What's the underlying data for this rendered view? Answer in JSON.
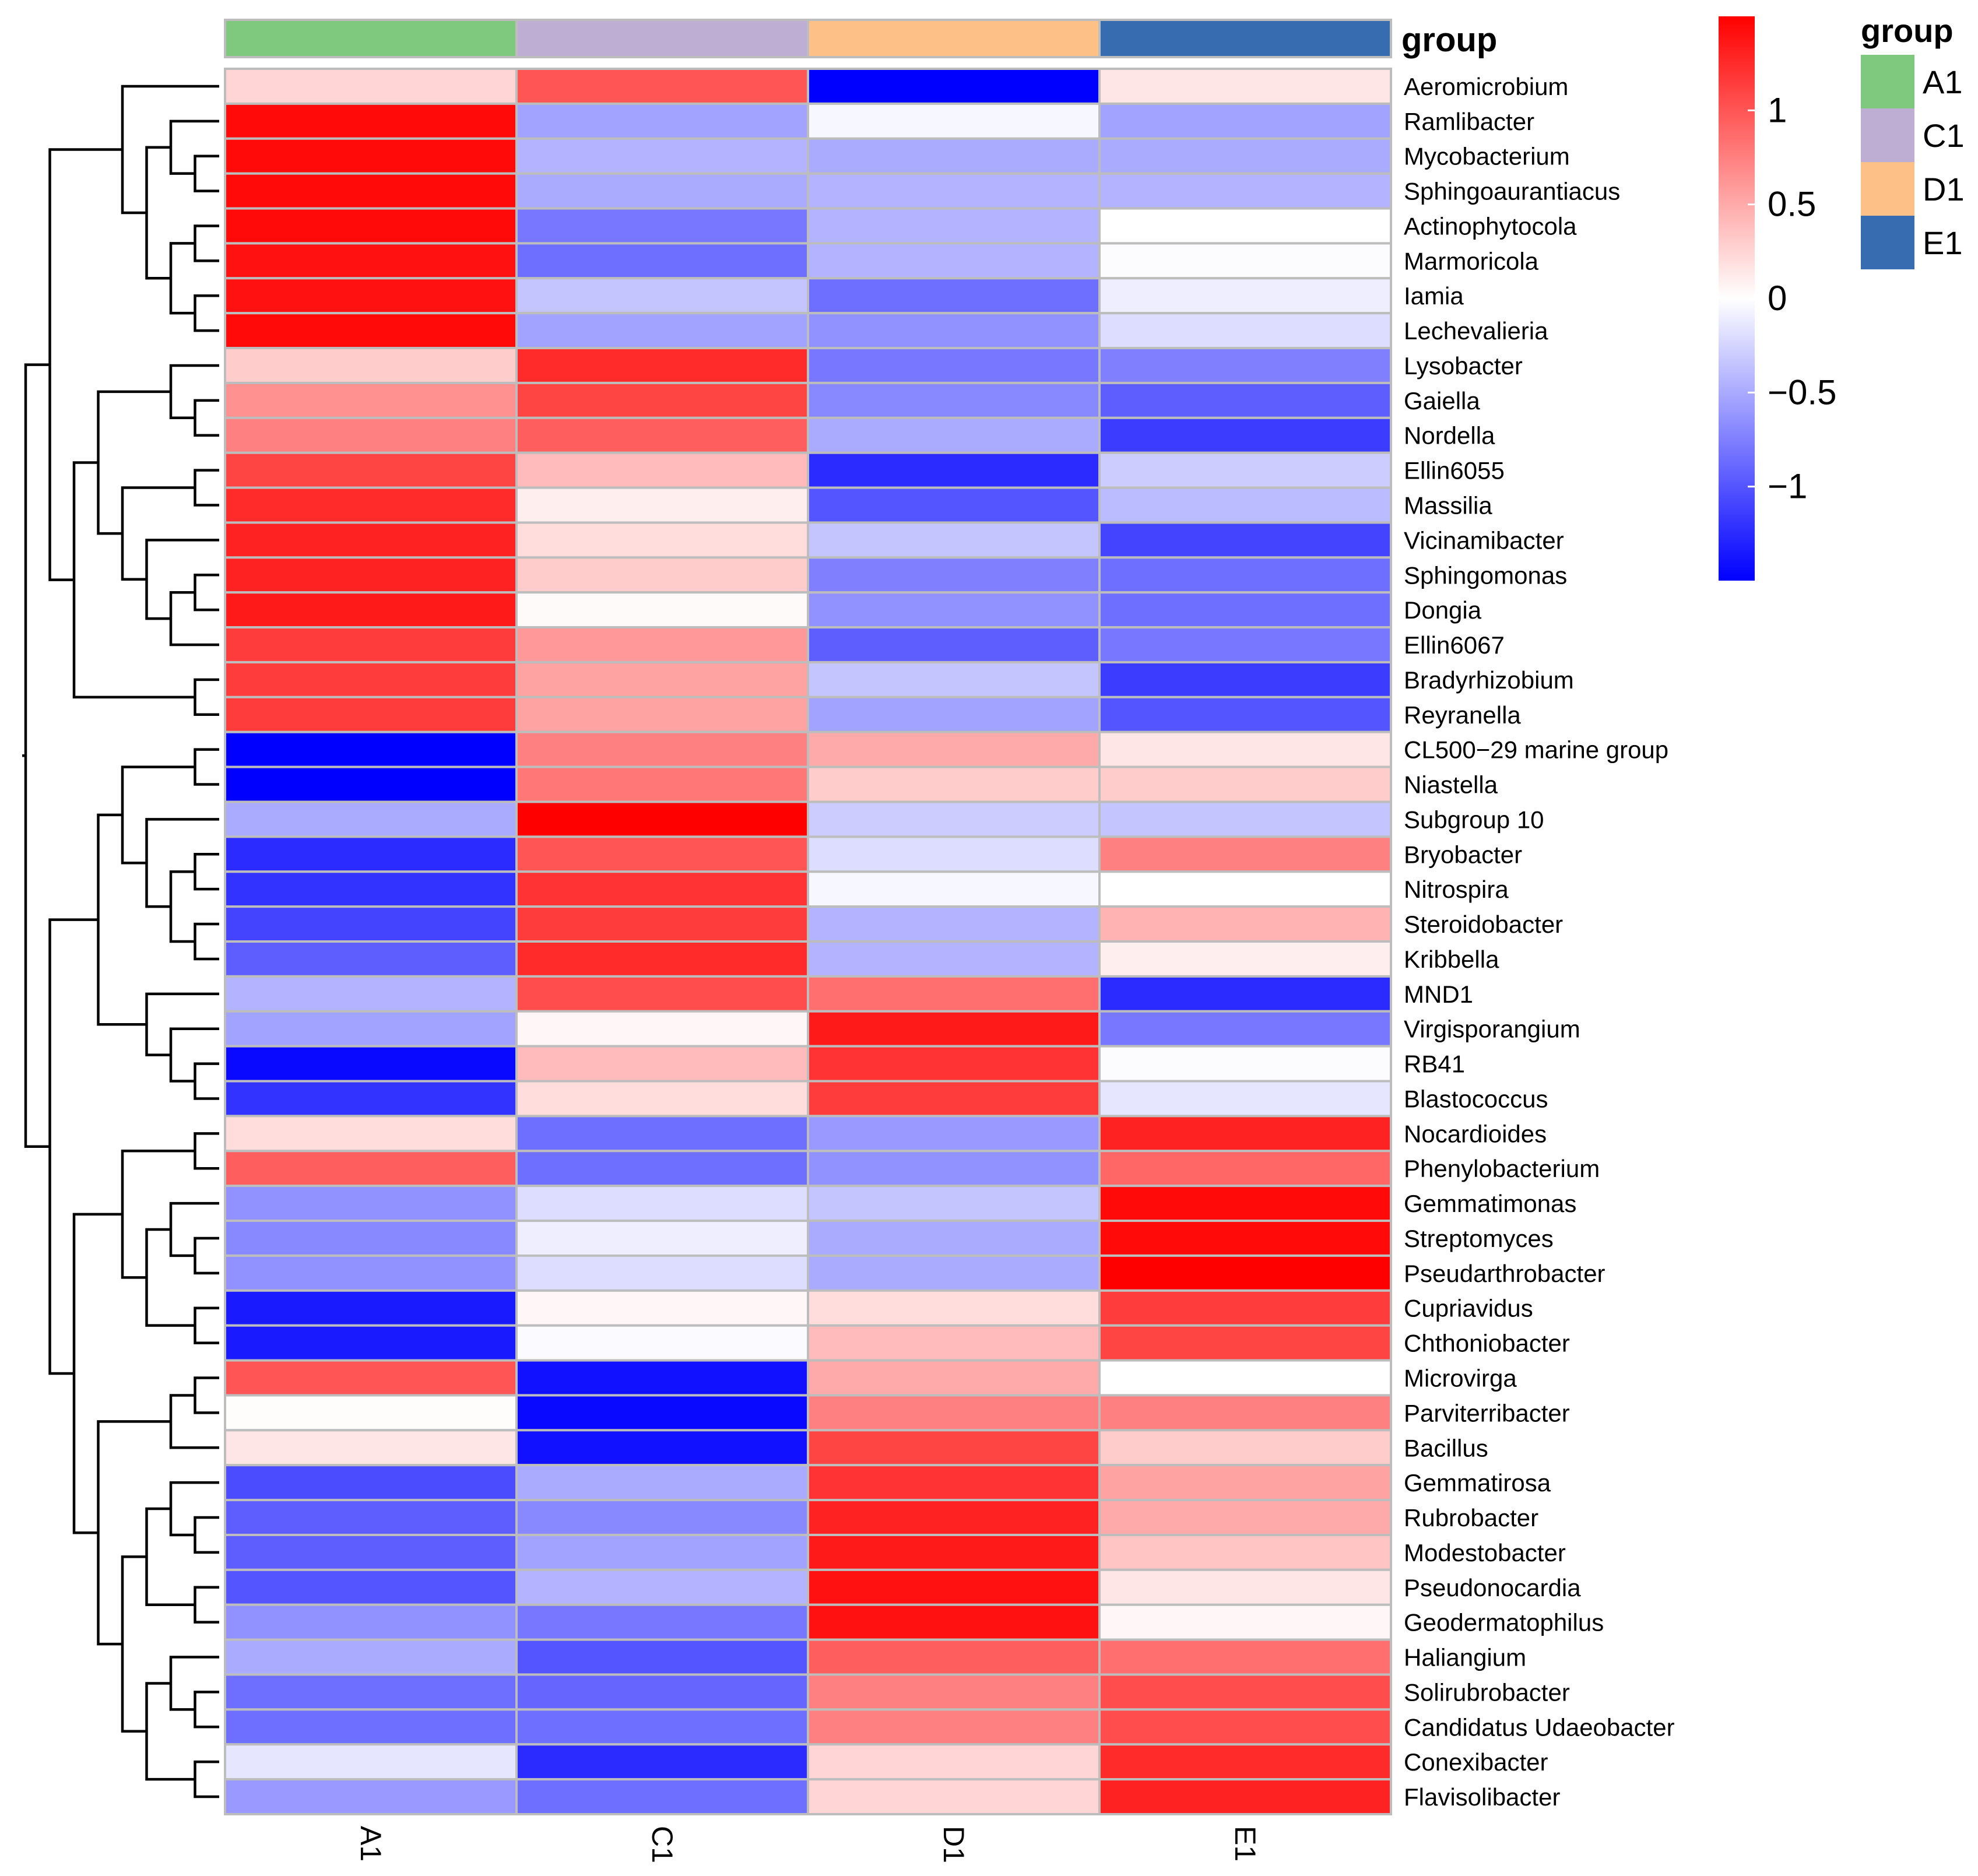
{
  "chart_data": {
    "type": "heatmap",
    "columns": [
      "A1",
      "C1",
      "D1",
      "E1"
    ],
    "rows": [
      "Aeromicrobium",
      "Ramlibacter",
      "Mycobacterium",
      "Sphingoaurantiacus",
      "Actinophytocola",
      "Marmoricola",
      "Iamia",
      "Lechevalieria",
      "Lysobacter",
      "Gaiella",
      "Nordella",
      "Ellin6055",
      "Massilia",
      "Vicinamibacter",
      "Sphingomonas",
      "Dongia",
      "Ellin6067",
      "Bradyrhizobium",
      "Reyranella",
      "CL500−29 marine group",
      "Niastella",
      "Subgroup 10",
      "Bryobacter",
      "Nitrospira",
      "Steroidobacter",
      "Kribbella",
      "MND1",
      "Virgisporangium",
      "RB41",
      "Blastococcus",
      "Nocardioides",
      "Phenylobacterium",
      "Gemmatimonas",
      "Streptomyces",
      "Pseudarthrobacter",
      "Cupriavidus",
      "Chthoniobacter",
      "Microvirga",
      "Parviterribacter",
      "Bacillus",
      "Gemmatirosa",
      "Rubrobacter",
      "Modestobacter",
      "Pseudonocardia",
      "Geodermatophilus",
      "Haliangium",
      "Solirubrobacter",
      "Candidatus Udaeobacter",
      "Conexibacter",
      "Flavisolibacter"
    ],
    "values": [
      [
        0.25,
        1.0,
        -1.5,
        0.15
      ],
      [
        1.45,
        -0.55,
        -0.05,
        -0.55
      ],
      [
        1.45,
        -0.45,
        -0.5,
        -0.5
      ],
      [
        1.45,
        -0.5,
        -0.45,
        -0.45
      ],
      [
        1.45,
        -0.8,
        -0.45,
        0.0
      ],
      [
        1.4,
        -0.85,
        -0.45,
        -0.02
      ],
      [
        1.4,
        -0.35,
        -0.85,
        -0.1
      ],
      [
        1.45,
        -0.55,
        -0.65,
        -0.2
      ],
      [
        0.3,
        1.25,
        -0.8,
        -0.75
      ],
      [
        0.65,
        1.1,
        -0.7,
        -0.95
      ],
      [
        0.75,
        0.95,
        -0.5,
        -1.15
      ],
      [
        1.1,
        0.4,
        -1.25,
        -0.3
      ],
      [
        1.25,
        0.1,
        -1.0,
        -0.4
      ],
      [
        1.3,
        0.2,
        -0.35,
        -1.1
      ],
      [
        1.3,
        0.3,
        -0.75,
        -0.85
      ],
      [
        1.35,
        0.03,
        -0.65,
        -0.85
      ],
      [
        1.15,
        0.6,
        -0.95,
        -0.8
      ],
      [
        1.15,
        0.55,
        -0.35,
        -1.15
      ],
      [
        1.15,
        0.55,
        -0.55,
        -1.0
      ],
      [
        -1.5,
        0.75,
        0.5,
        0.15
      ],
      [
        -1.5,
        0.8,
        0.3,
        0.3
      ],
      [
        -0.5,
        1.5,
        -0.3,
        -0.35
      ],
      [
        -1.25,
        1.0,
        -0.2,
        0.75
      ],
      [
        -1.2,
        1.2,
        -0.05,
        0.0
      ],
      [
        -1.1,
        1.15,
        -0.45,
        0.45
      ],
      [
        -0.95,
        1.25,
        -0.45,
        0.1
      ],
      [
        -0.45,
        1.05,
        0.85,
        -1.25
      ],
      [
        -0.55,
        0.05,
        1.35,
        -0.8
      ],
      [
        -1.45,
        0.4,
        1.2,
        -0.02
      ],
      [
        -1.2,
        0.2,
        1.15,
        -0.15
      ],
      [
        0.2,
        -0.85,
        -0.6,
        1.3
      ],
      [
        0.95,
        -0.85,
        -0.65,
        0.9
      ],
      [
        -0.65,
        -0.2,
        -0.35,
        1.45
      ],
      [
        -0.7,
        -0.1,
        -0.5,
        1.45
      ],
      [
        -0.65,
        -0.2,
        -0.5,
        1.5
      ],
      [
        -1.35,
        0.05,
        0.2,
        1.15
      ],
      [
        -1.35,
        -0.03,
        0.4,
        1.1
      ],
      [
        1.0,
        -1.4,
        0.5,
        0.0
      ],
      [
        0.02,
        -1.45,
        0.75,
        0.75
      ],
      [
        0.15,
        -1.4,
        1.1,
        0.3
      ],
      [
        -1.05,
        -0.5,
        1.2,
        0.55
      ],
      [
        -0.95,
        -0.7,
        1.3,
        0.5
      ],
      [
        -0.95,
        -0.55,
        1.35,
        0.35
      ],
      [
        -1.0,
        -0.45,
        1.4,
        0.15
      ],
      [
        -0.65,
        -0.8,
        1.4,
        0.05
      ],
      [
        -0.5,
        -1.0,
        0.95,
        0.85
      ],
      [
        -0.85,
        -0.9,
        0.75,
        1.05
      ],
      [
        -0.85,
        -0.85,
        0.75,
        1.05
      ],
      [
        -0.15,
        -1.25,
        0.25,
        1.25
      ],
      [
        -0.6,
        -0.85,
        0.25,
        1.3
      ]
    ],
    "vmin": -1.5,
    "vmax": 1.5,
    "colorbar_ticks": [
      {
        "value": 1,
        "label": "1"
      },
      {
        "value": 0.5,
        "label": "0.5"
      },
      {
        "value": 0,
        "label": "0"
      },
      {
        "value": -0.5,
        "label": "−0.5"
      },
      {
        "value": -1,
        "label": "−1"
      }
    ],
    "colormap": {
      "low": "#0000FF",
      "mid": "#FFFFFF",
      "high": "#FF0000"
    },
    "annotation": {
      "title": "group",
      "groups": [
        {
          "name": "A1",
          "color": "#7FC97F"
        },
        {
          "name": "C1",
          "color": "#BEAED4"
        },
        {
          "name": "D1",
          "color": "#FDC086"
        },
        {
          "name": "E1",
          "color": "#386CB0"
        }
      ]
    },
    "row_dendrogram": {
      "leaf_order_is_row_order": true,
      "tree": [
        [
          [
            0,
            [
              [
                1,
                [
                  2,
                  3
                ]
              ],
              [
                [
                  4,
                  5
                ],
                [
                  6,
                  7
                ]
              ]
            ]
          ],
          [
            [
              [
                8,
                [
                  9,
                  10
                ]
              ],
              [
                [
                  11,
                  12
                ],
                [
                  13,
                  [
                    [
                      14,
                      15
                    ],
                    16
                  ]
                ]
              ]
            ],
            [
              17,
              18
            ]
          ]
        ],
        [
          [
            [
              [
                19,
                20
              ],
              [
                21,
                [
                  [
                    22,
                    23
                  ],
                  [
                    24,
                    25
                  ]
                ]
              ]
            ],
            [
              26,
              [
                27,
                [
                  28,
                  29
                ]
              ]
            ]
          ],
          [
            [
              [
                30,
                31
              ],
              [
                [
                  32,
                  [
                    33,
                    34
                  ]
                ],
                [
                  35,
                  36
                ]
              ]
            ],
            [
              [
                [
                  37,
                  38
                ],
                39
              ],
              [
                [
                  [
                    40,
                    [
                      41,
                      42
                    ]
                  ],
                  [
                    43,
                    44
                  ]
                ],
                [
                  [
                    45,
                    [
                      46,
                      47
                    ]
                  ],
                  [
                    48,
                    49
                  ]
                ]
              ]
            ]
          ]
        ]
      ]
    },
    "legend_placement": "right"
  }
}
